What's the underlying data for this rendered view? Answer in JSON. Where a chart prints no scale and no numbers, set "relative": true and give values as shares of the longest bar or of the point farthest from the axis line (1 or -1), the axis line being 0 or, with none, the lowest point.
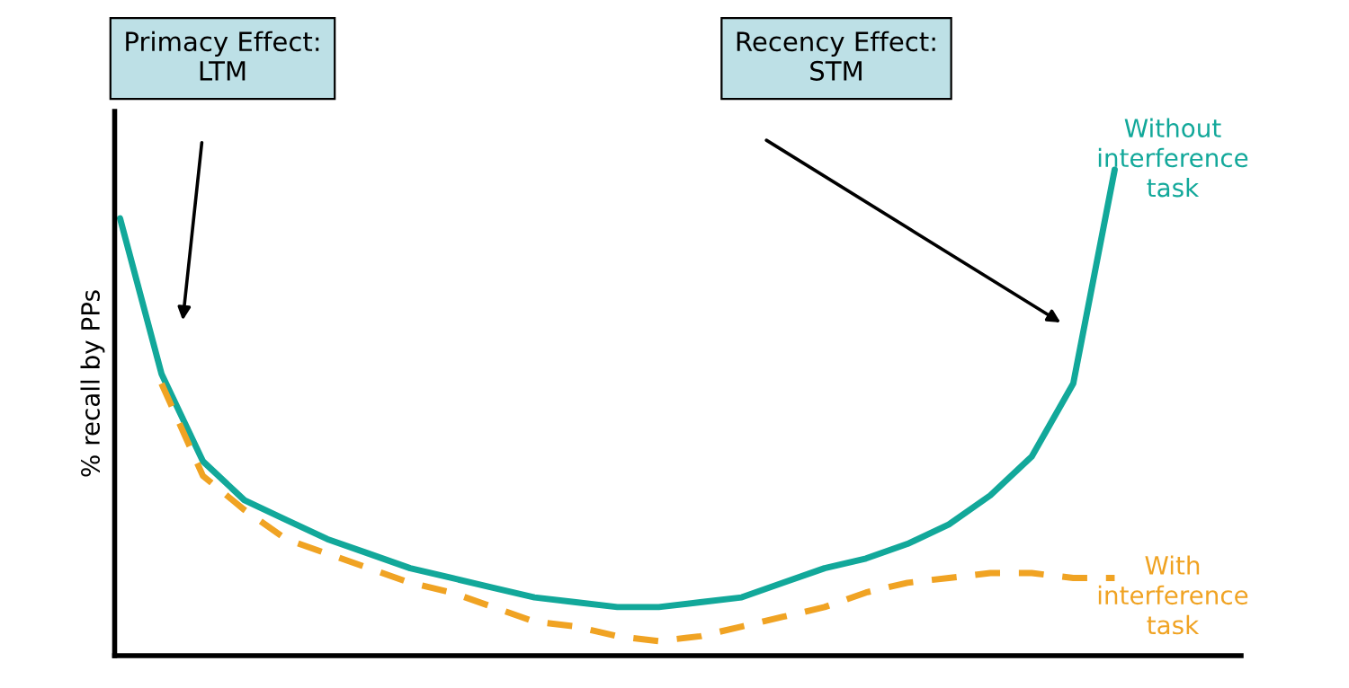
{
  "chart_data": {
    "type": "line",
    "relative": true,
    "ylabel": "% recall by PPs",
    "categories": [
      null,
      null,
      null,
      null,
      null,
      null,
      null,
      null,
      null,
      null,
      null,
      null,
      null,
      null,
      null,
      null,
      null,
      null,
      null,
      null,
      null,
      null,
      null,
      null,
      null
    ],
    "series": [
      {
        "name": "Without\ninterference\ntask",
        "color": "#12a89a",
        "line_style": "solid",
        "values": [
          0.9,
          0.58,
          0.4,
          0.32,
          0.28,
          0.24,
          0.21,
          0.18,
          0.16,
          0.14,
          0.12,
          0.11,
          0.1,
          0.1,
          0.11,
          0.12,
          0.15,
          0.18,
          0.2,
          0.23,
          0.27,
          0.33,
          0.41,
          0.56,
          1
        ]
      },
      {
        "name": "With\ninterference\ntask",
        "color": "#f0a323",
        "line_style": "dashed",
        "values": [
          null,
          0.56,
          0.37,
          0.3,
          0.24,
          0.21,
          0.18,
          0.15,
          0.13,
          0.1,
          0.07,
          0.06,
          0.04,
          0.03,
          0.04,
          0.06,
          0.08,
          0.1,
          0.13,
          0.15,
          0.16,
          0.17,
          0.17,
          0.16,
          0.16
        ]
      }
    ],
    "annotations": [
      "Primacy Effect:\nLTM",
      "Recency Effect:\nSTM"
    ],
    "legend": false,
    "marker": "none"
  }
}
